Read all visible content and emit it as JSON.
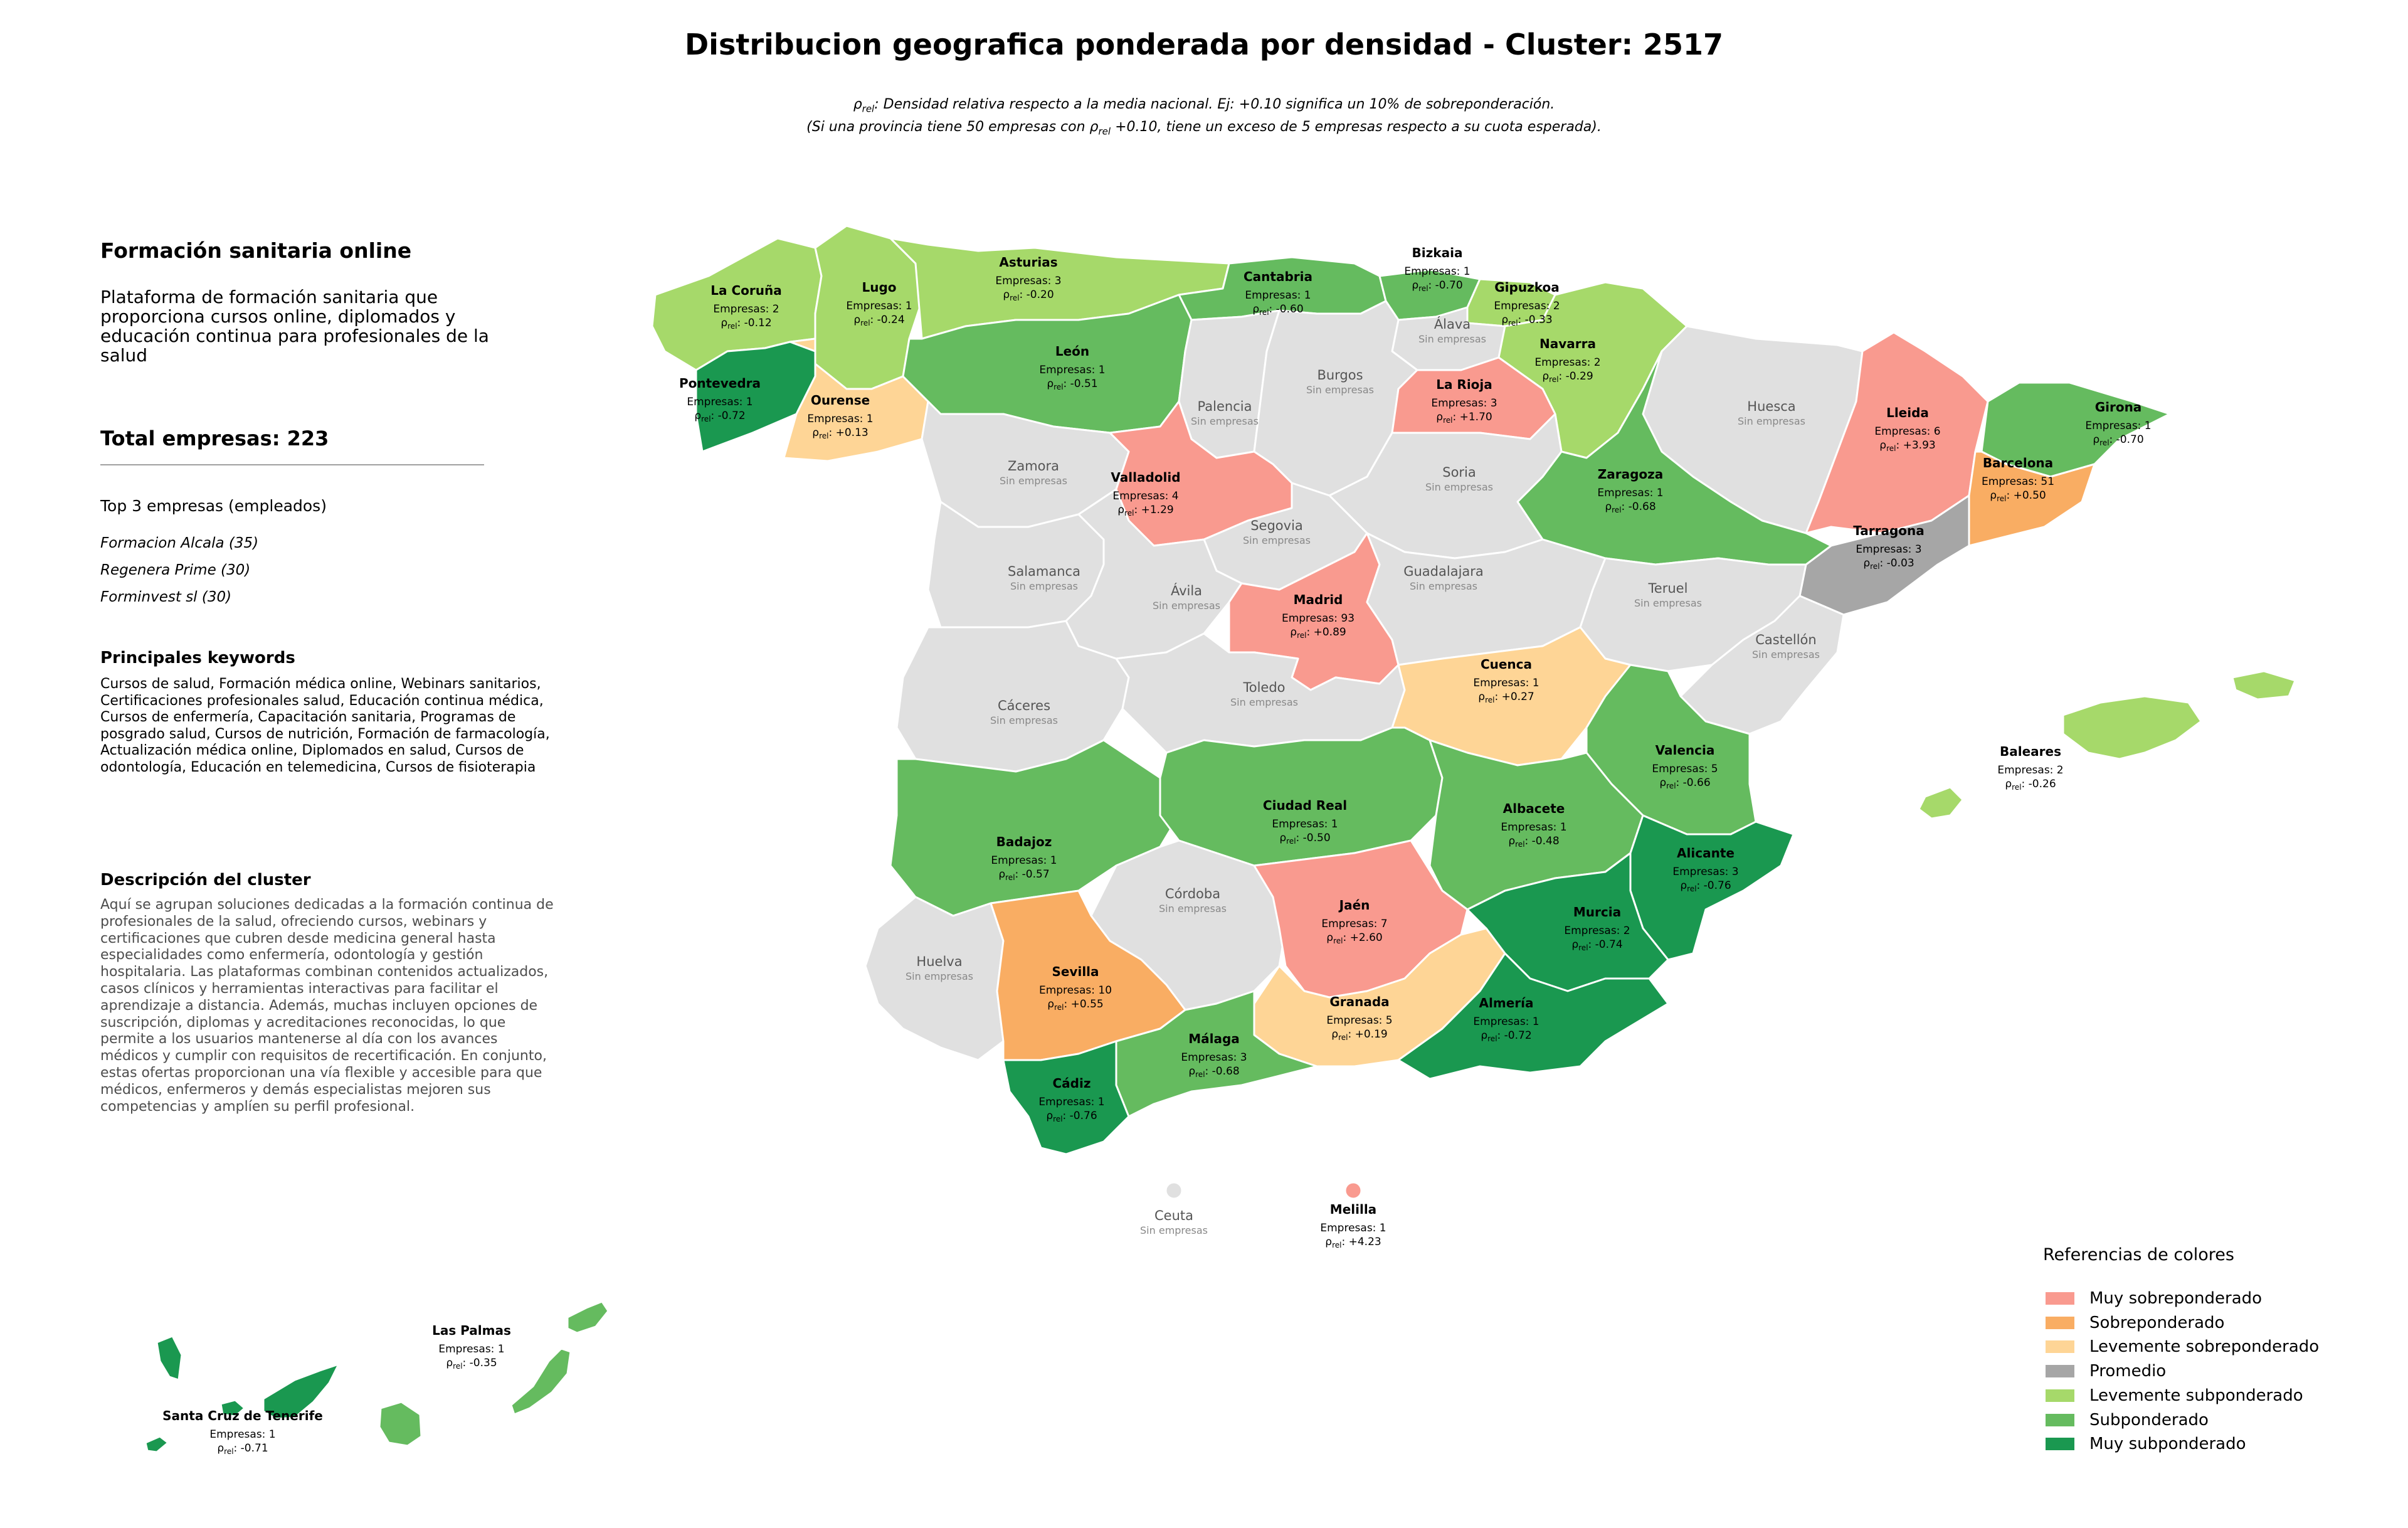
{
  "title": "Distribucion geografica ponderada por densidad - Cluster: 2517",
  "subtitle_line1": ": Densidad relativa respecto a la media nacional. Ej: +0.10 significa un 10% de sobreponderación.",
  "subtitle_line2a": "(Si una provincia tiene 50 empresas con ",
  "subtitle_line2b": " +0.10, tiene un exceso de 5 empresas respecto a su cuota esperada).",
  "rho_symbol": "ρ",
  "rho_sub": "rel",
  "panel": {
    "name": "Formación sanitaria online",
    "description": "Plataforma de formación sanitaria que proporciona cursos online, diplomados y educación continua para profesionales de la salud",
    "total": "Total empresas: 223",
    "top3_heading": "Top 3 empresas (empleados)",
    "top3": [
      "Formacion Alcala (35)",
      "Regenera Prime (30)",
      "Forminvest sl (30)"
    ],
    "keywords_heading": "Principales keywords",
    "keywords": "Cursos de salud, Formación médica online, Webinars sanitarios, Certificaciones profesionales salud, Educación continua médica, Cursos de enfermería, Capacitación sanitaria, Programas de posgrado salud, Cursos de nutrición, Formación de farmacología, Actualización médica online, Diplomados en salud, Cursos de odontología, Educación en telemedicina, Cursos de fisioterapia",
    "cluster_heading": "Descripción del cluster",
    "cluster_text": "Aquí se agrupan soluciones dedicadas a la formación continua de profesionales de la salud, ofreciendo cursos, webinars y certificaciones que cubren desde medicina general hasta especialidades como enfermería, odontología y gestión hospitalaria. Las plataformas combinan contenidos actualizados, casos clínicos y herramientas interactivas para facilitar el aprendizaje a distancia. Además, muchas incluyen opciones de suscripción, diplomas y acreditaciones reconocidas, lo que permite a los usuarios mantenerse al día con los avances médicos y cumplir con requisitos de recertificación. En conjunto, estas ofertas proporcionan una vía flexible y accesible para que médicos, enfermeros y demás especialistas mejoren sus competencias y amplíen su perfil profesional."
  },
  "colors": {
    "muy_sobre": "#f99a8f",
    "sobre": "#f9ad63",
    "lev_sobre": "#fed596",
    "promedio": "#a6a6a6",
    "lev_sub": "#a6d96a",
    "sub": "#65bb5f",
    "muy_sub": "#1a9850",
    "none": "#e0e0e0"
  },
  "legend": {
    "title": "Referencias de colores",
    "items": [
      {
        "label": "Muy sobreponderado",
        "color": "#f99a8f"
      },
      {
        "label": "Sobreponderado",
        "color": "#f9ad63"
      },
      {
        "label": "Levemente sobreponderado",
        "color": "#fed596"
      },
      {
        "label": "Promedio",
        "color": "#a6a6a6"
      },
      {
        "label": "Levemente subponderado",
        "color": "#a6d96a"
      },
      {
        "label": "Subponderado",
        "color": "#65bb5f"
      },
      {
        "label": "Muy subponderado",
        "color": "#1a9850"
      }
    ]
  },
  "provinces": [
    {
      "name": "La Coruña",
      "empresas": 2,
      "rho": "-0.12",
      "cls": "lev_sub"
    },
    {
      "name": "Lugo",
      "empresas": 1,
      "rho": "-0.24",
      "cls": "lev_sub"
    },
    {
      "name": "Asturias",
      "empresas": 3,
      "rho": "-0.20",
      "cls": "lev_sub"
    },
    {
      "name": "Cantabria",
      "empresas": 1,
      "rho": "-0.60",
      "cls": "sub"
    },
    {
      "name": "Bizkaia",
      "empresas": 1,
      "rho": "-0.70",
      "cls": "sub"
    },
    {
      "name": "Gipuzkoa",
      "empresas": 2,
      "rho": "-0.33",
      "cls": "lev_sub"
    },
    {
      "name": "Álava",
      "empresas": null,
      "rho": null,
      "cls": "none"
    },
    {
      "name": "Navarra",
      "empresas": 2,
      "rho": "-0.29",
      "cls": "lev_sub"
    },
    {
      "name": "Huesca",
      "empresas": null,
      "rho": null,
      "cls": "none"
    },
    {
      "name": "Lleida",
      "empresas": 6,
      "rho": "+3.93",
      "cls": "muy_sobre"
    },
    {
      "name": "Girona",
      "empresas": 1,
      "rho": "-0.70",
      "cls": "sub"
    },
    {
      "name": "Barcelona",
      "empresas": 51,
      "rho": "+0.50",
      "cls": "sobre"
    },
    {
      "name": "Tarragona",
      "empresas": 3,
      "rho": "-0.03",
      "cls": "promedio"
    },
    {
      "name": "Pontevedra",
      "empresas": 1,
      "rho": "-0.72",
      "cls": "muy_sub"
    },
    {
      "name": "Ourense",
      "empresas": 1,
      "rho": "+0.13",
      "cls": "lev_sobre"
    },
    {
      "name": "León",
      "empresas": 1,
      "rho": "-0.51",
      "cls": "sub"
    },
    {
      "name": "Palencia",
      "empresas": null,
      "rho": null,
      "cls": "none"
    },
    {
      "name": "Burgos",
      "empresas": null,
      "rho": null,
      "cls": "none"
    },
    {
      "name": "La Rioja",
      "empresas": 3,
      "rho": "+1.70",
      "cls": "muy_sobre"
    },
    {
      "name": "Zaragoza",
      "empresas": 1,
      "rho": "-0.68",
      "cls": "sub"
    },
    {
      "name": "Zamora",
      "empresas": null,
      "rho": null,
      "cls": "none"
    },
    {
      "name": "Valladolid",
      "empresas": 4,
      "rho": "+1.29",
      "cls": "muy_sobre"
    },
    {
      "name": "Soria",
      "empresas": null,
      "rho": null,
      "cls": "none"
    },
    {
      "name": "Segovia",
      "empresas": null,
      "rho": null,
      "cls": "none"
    },
    {
      "name": "Salamanca",
      "empresas": null,
      "rho": null,
      "cls": "none"
    },
    {
      "name": "Ávila",
      "empresas": null,
      "rho": null,
      "cls": "none"
    },
    {
      "name": "Madrid",
      "empresas": 93,
      "rho": "+0.89",
      "cls": "muy_sobre"
    },
    {
      "name": "Guadalajara",
      "empresas": null,
      "rho": null,
      "cls": "none"
    },
    {
      "name": "Teruel",
      "empresas": null,
      "rho": null,
      "cls": "none"
    },
    {
      "name": "Castellón",
      "empresas": null,
      "rho": null,
      "cls": "none"
    },
    {
      "name": "Cáceres",
      "empresas": null,
      "rho": null,
      "cls": "none"
    },
    {
      "name": "Toledo",
      "empresas": null,
      "rho": null,
      "cls": "none"
    },
    {
      "name": "Cuenca",
      "empresas": 1,
      "rho": "+0.27",
      "cls": "lev_sobre"
    },
    {
      "name": "Valencia",
      "empresas": 5,
      "rho": "-0.66",
      "cls": "sub"
    },
    {
      "name": "Baleares",
      "empresas": 2,
      "rho": "-0.26",
      "cls": "lev_sub"
    },
    {
      "name": "Badajoz",
      "empresas": 1,
      "rho": "-0.57",
      "cls": "sub"
    },
    {
      "name": "Ciudad Real",
      "empresas": 1,
      "rho": "-0.50",
      "cls": "sub"
    },
    {
      "name": "Albacete",
      "empresas": 1,
      "rho": "-0.48",
      "cls": "sub"
    },
    {
      "name": "Alicante",
      "empresas": 3,
      "rho": "-0.76",
      "cls": "muy_sub"
    },
    {
      "name": "Córdoba",
      "empresas": null,
      "rho": null,
      "cls": "none"
    },
    {
      "name": "Jaén",
      "empresas": 7,
      "rho": "+2.60",
      "cls": "muy_sobre"
    },
    {
      "name": "Murcia",
      "empresas": 2,
      "rho": "-0.74",
      "cls": "muy_sub"
    },
    {
      "name": "Huelva",
      "empresas": null,
      "rho": null,
      "cls": "none"
    },
    {
      "name": "Sevilla",
      "empresas": 10,
      "rho": "+0.55",
      "cls": "sobre"
    },
    {
      "name": "Granada",
      "empresas": 5,
      "rho": "+0.19",
      "cls": "lev_sobre"
    },
    {
      "name": "Almería",
      "empresas": 1,
      "rho": "-0.72",
      "cls": "muy_sub"
    },
    {
      "name": "Málaga",
      "empresas": 3,
      "rho": "-0.68",
      "cls": "sub"
    },
    {
      "name": "Cádiz",
      "empresas": 1,
      "rho": "-0.76",
      "cls": "muy_sub"
    },
    {
      "name": "Ceuta",
      "empresas": null,
      "rho": null,
      "cls": "none"
    },
    {
      "name": "Melilla",
      "empresas": 1,
      "rho": "+4.23",
      "cls": "muy_sobre"
    },
    {
      "name": "Las Palmas",
      "empresas": 1,
      "rho": "-0.35",
      "cls": "sub"
    },
    {
      "name": "Santa Cruz de Tenerife",
      "empresas": 1,
      "rho": "-0.71",
      "cls": "muy_sub"
    }
  ],
  "empresas_prefix": "Empresas: ",
  "sin_empresas": "Sin empresas"
}
